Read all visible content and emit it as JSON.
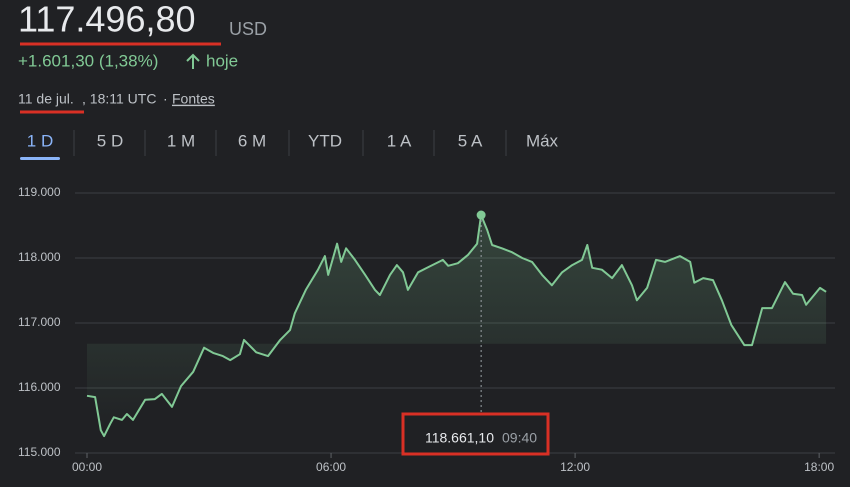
{
  "header": {
    "price": "117.496,80",
    "currency": "USD",
    "change": "+1.601,30 (1,38%)",
    "period": "hoje",
    "date": "11 de jul.",
    "time": ", 18:11 UTC",
    "separator": "·",
    "sources": "Fontes"
  },
  "tabs": {
    "items": [
      "1 D",
      "5 D",
      "1 M",
      "6 M",
      "YTD",
      "1 A",
      "5 A",
      "Máx"
    ],
    "selected": 0
  },
  "chart_data": {
    "type": "line",
    "x": [
      0.0,
      0.2,
      0.34,
      0.42,
      0.57,
      0.66,
      0.86,
      0.98,
      1.13,
      1.43,
      1.67,
      1.84,
      2.09,
      2.31,
      2.61,
      2.88,
      3.1,
      3.34,
      3.52,
      3.76,
      3.86,
      4.16,
      4.45,
      4.75,
      4.99,
      5.11,
      5.38,
      5.68,
      5.85,
      5.93,
      6.15,
      6.25,
      6.37,
      6.59,
      6.84,
      7.08,
      7.2,
      7.45,
      7.62,
      7.77,
      7.89,
      8.14,
      8.39,
      8.75,
      8.88,
      9.12,
      9.37,
      9.59,
      9.69,
      9.84,
      9.96,
      10.2,
      10.45,
      10.7,
      10.94,
      11.19,
      11.43,
      11.68,
      11.93,
      12.17,
      12.3,
      12.42,
      12.66,
      12.91,
      13.15,
      13.4,
      13.52,
      13.77,
      13.99,
      14.21,
      14.58,
      14.83,
      14.93,
      15.15,
      15.39,
      15.61,
      15.84,
      16.16,
      16.35,
      16.6,
      16.84,
      17.16,
      17.36,
      17.58,
      17.68,
      18.02,
      18.17
    ],
    "series": [
      {
        "color": "#81c995",
        "values": [
          115880,
          115860,
          115350,
          115260,
          115450,
          115550,
          115510,
          115600,
          115510,
          115820,
          115830,
          115910,
          115710,
          116030,
          116250,
          116620,
          116540,
          116490,
          116430,
          116520,
          116740,
          116550,
          116490,
          116740,
          116890,
          117150,
          117510,
          117820,
          118030,
          117740,
          118220,
          117940,
          118150,
          117970,
          117740,
          117510,
          117430,
          117740,
          117890,
          117780,
          117510,
          117780,
          117860,
          117970,
          117880,
          117920,
          118050,
          118220,
          118660,
          118430,
          118200,
          118150,
          118090,
          118000,
          117940,
          117740,
          117580,
          117780,
          117890,
          117970,
          118200,
          117850,
          117820,
          117690,
          117890,
          117580,
          117350,
          117540,
          117970,
          117940,
          118030,
          117940,
          117620,
          117690,
          117660,
          117350,
          116970,
          116660,
          116660,
          117230,
          117230,
          117630,
          117450,
          117430,
          117280,
          117540,
          117480
        ]
      }
    ],
    "xlim": [
      0,
      18.39
    ],
    "xticks": [
      {
        "value": 0,
        "label": "00:00"
      },
      {
        "value": 6,
        "label": "06:00"
      },
      {
        "value": 12,
        "label": "12:00"
      },
      {
        "value": 18,
        "label": "18:00"
      }
    ],
    "ylim": [
      115000,
      119000
    ],
    "yticks": [
      {
        "value": 115000,
        "label": "115.000"
      },
      {
        "value": 116000,
        "label": "116.000"
      },
      {
        "value": 117000,
        "label": "117.000"
      },
      {
        "value": 118000,
        "label": "118.000"
      },
      {
        "value": 119000,
        "label": "119.000"
      }
    ],
    "grid": true,
    "hover": {
      "x": 9.69,
      "x_label": "09:40",
      "value": 118661.1,
      "value_label": "118.661,10"
    }
  }
}
